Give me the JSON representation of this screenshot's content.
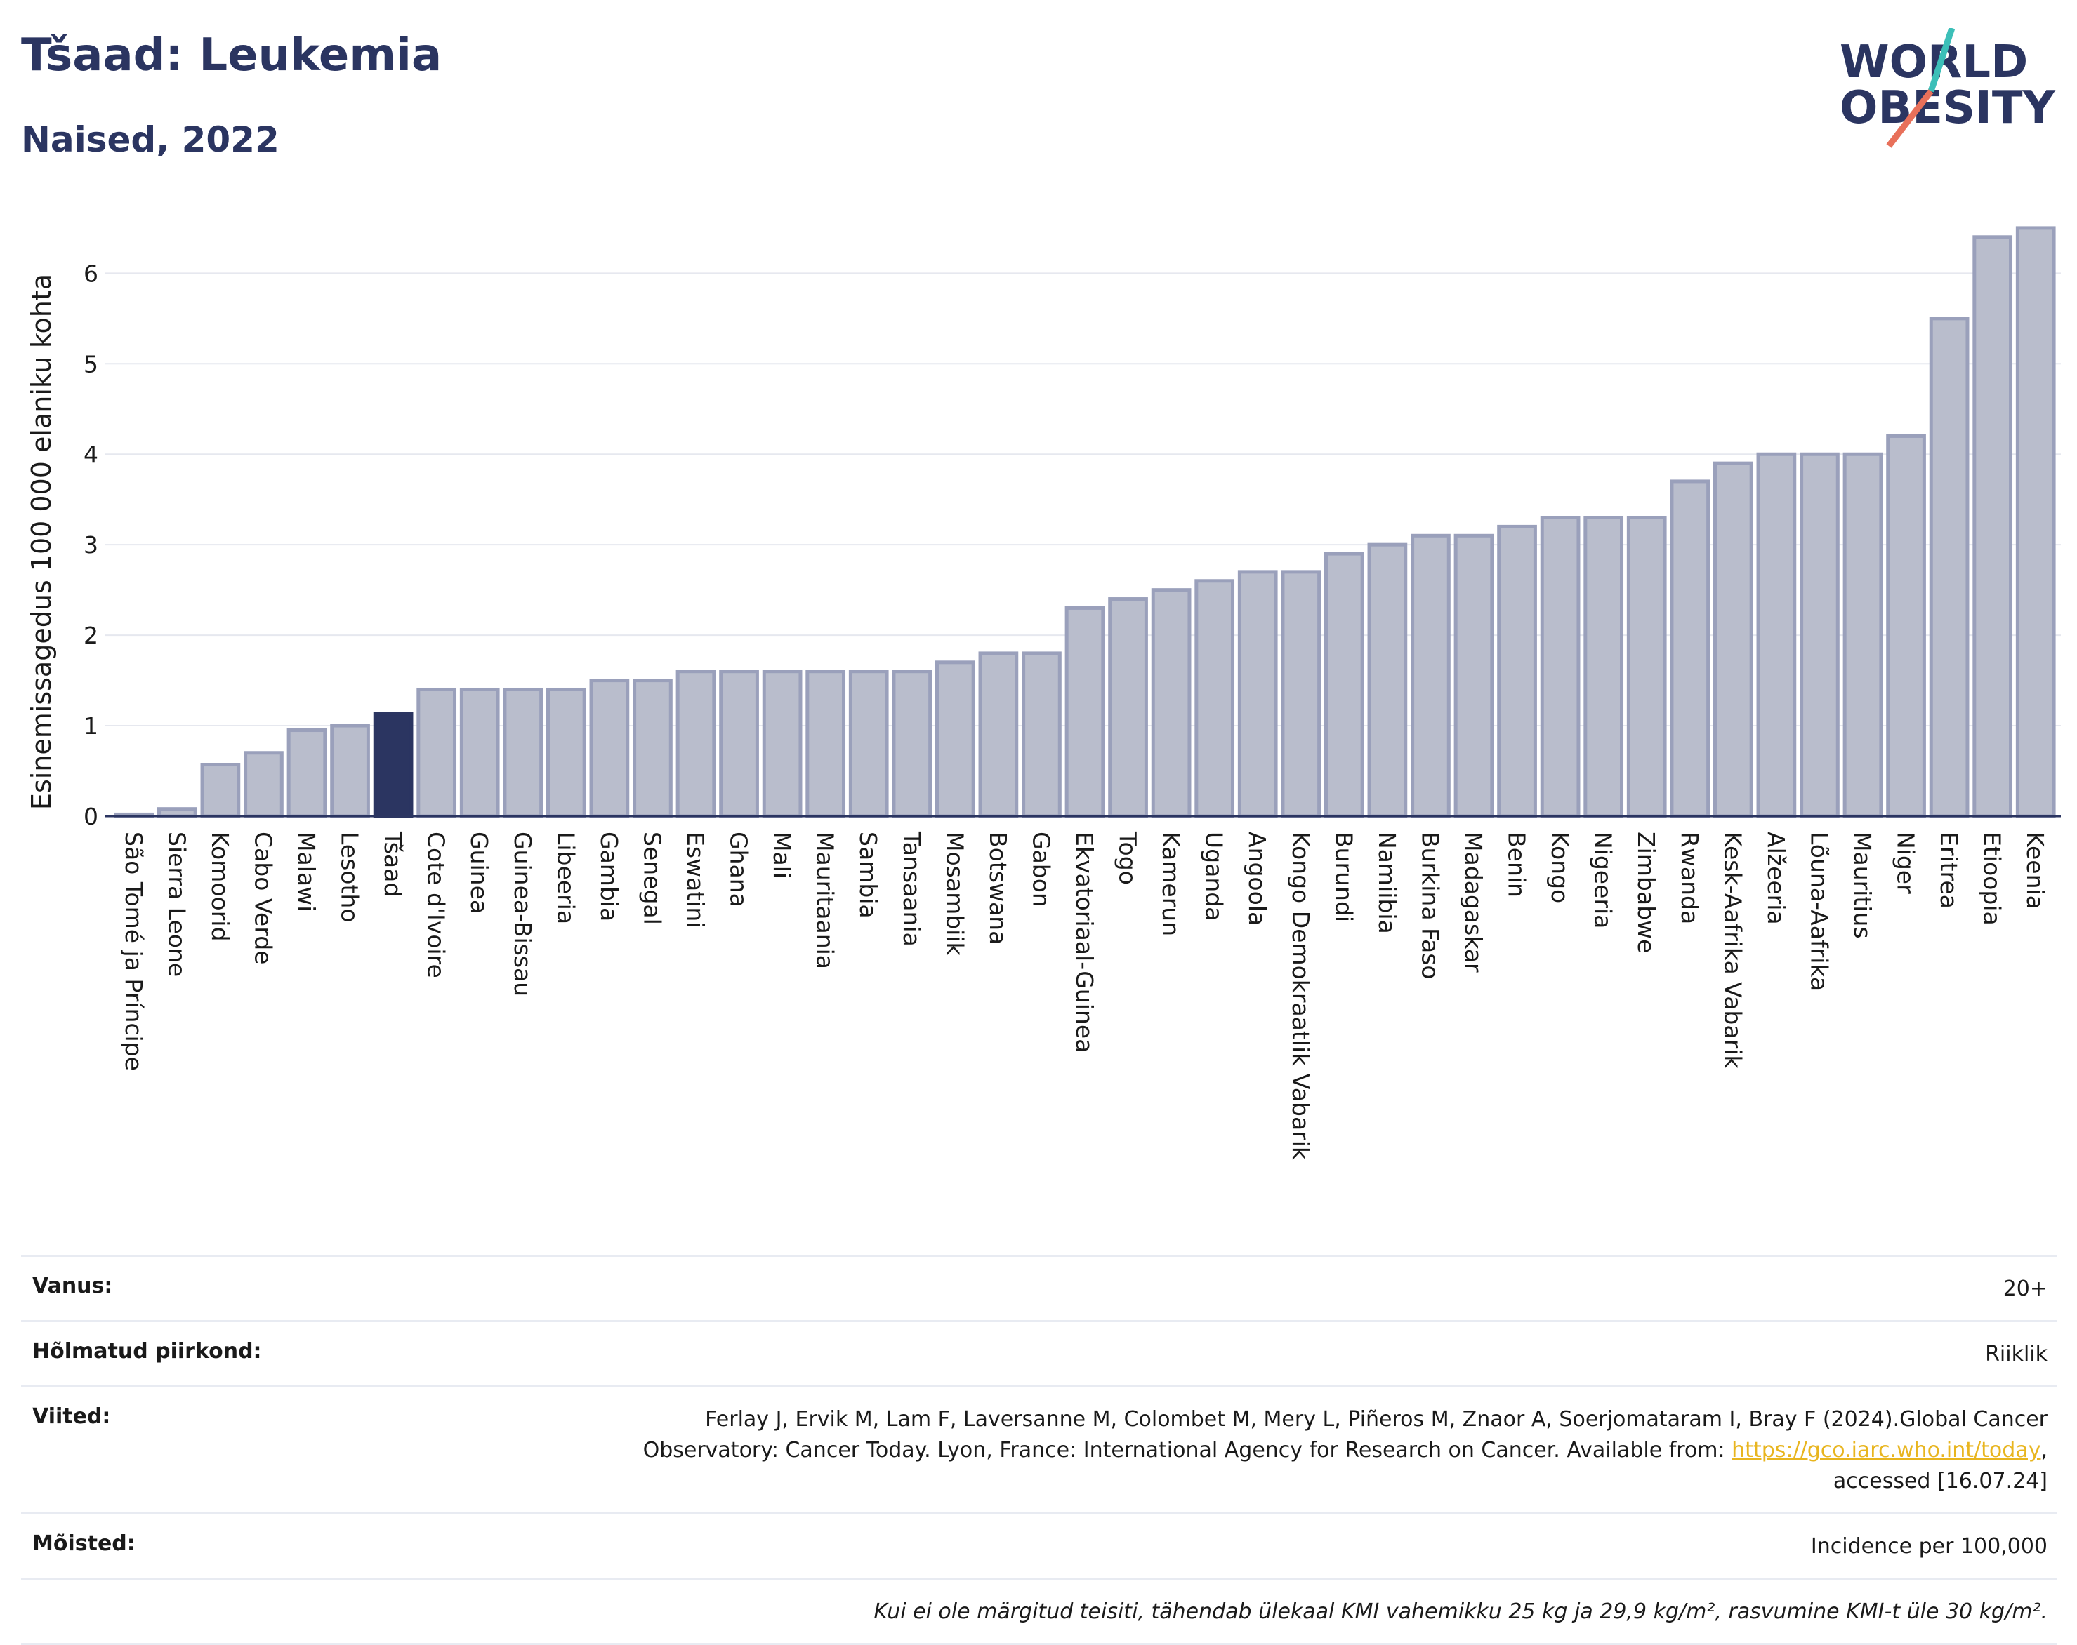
{
  "header": {
    "title": "Tšaad: Leukemia",
    "subtitle": "Naised, 2022"
  },
  "logo": {
    "line1": "WORLD",
    "line2": "OBESITY",
    "colors": {
      "text": "#2b3561",
      "slash_top": "#3cbfb8",
      "slash_bottom": "#e8705a"
    }
  },
  "chart_data": {
    "type": "bar",
    "ylabel": "Esinemissagedus 100 000 elaniku kohta",
    "ylim": [
      0,
      6.6
    ],
    "yticks": [
      0,
      1,
      2,
      3,
      4,
      5,
      6
    ],
    "grid": true,
    "highlight": "Tšaad",
    "colors": {
      "bar": "#b9bdcc",
      "bar_edge": "#9aa0bb",
      "highlight": "#2b3561"
    },
    "categories": [
      "São Tomé ja Príncipe",
      "Sierra Leone",
      "Komoorid",
      "Cabo Verde",
      "Malawi",
      "Lesotho",
      "Tšaad",
      "Cote d'Ivoire",
      "Guinea",
      "Guinea-Bissau",
      "Libeeria",
      "Gambia",
      "Senegal",
      "Eswatini",
      "Ghana",
      "Mali",
      "Mauritaania",
      "Sambia",
      "Tansaania",
      "Mosambiik",
      "Botswana",
      "Gabon",
      "Ekvatoriaal-Guinea",
      "Togo",
      "Kamerun",
      "Uganda",
      "Angoola",
      "Kongo Demokraatlik Vabarik",
      "Burundi",
      "Namiibia",
      "Burkina Faso",
      "Madagaskar",
      "Benin",
      "Kongo",
      "Nigeeria",
      "Zimbabwe",
      "Rwanda",
      "Kesk-Aafrika Vabarik",
      "Alžeeria",
      "Lõuna-Aafrika",
      "Mauritius",
      "Niger",
      "Eritrea",
      "Etioopia",
      "Keenia"
    ],
    "values": [
      0.02,
      0.08,
      0.57,
      0.7,
      0.95,
      1.0,
      1.13,
      1.4,
      1.4,
      1.4,
      1.4,
      1.5,
      1.5,
      1.6,
      1.6,
      1.6,
      1.6,
      1.6,
      1.6,
      1.7,
      1.8,
      1.8,
      2.3,
      2.4,
      2.5,
      2.6,
      2.7,
      2.7,
      2.9,
      3.0,
      3.1,
      3.1,
      3.2,
      3.3,
      3.3,
      3.3,
      3.7,
      3.9,
      4.0,
      4.0,
      4.0,
      4.2,
      5.5,
      6.4,
      6.5
    ]
  },
  "info": {
    "age_label": "Vanus:",
    "age_value": "20+",
    "region_label": "Hõlmatud piirkond:",
    "region_value": "Riiklik",
    "refs_label": "Viited:",
    "refs_text": "Ferlay J, Ervik M, Lam F, Laversanne M, Colombet M, Mery L, Piñeros M, Znaor A, Soerjomataram I, Bray F (2024).Global Cancer Observatory: Cancer Today. Lyon, France: International Agency for Research on Cancer. Available from: ",
    "refs_link": "https://gco.iarc.who.int/today",
    "refs_tail": ", accessed [16.07.24]",
    "defs_label": "Mõisted:",
    "defs_value": "Incidence per 100,000",
    "note": "Kui ei ole märgitud teisiti, tähendab ülekaal KMI vahemikku 25 kg ja 29,9 kg/m², rasvumine KMI-t üle 30 kg/m²."
  }
}
